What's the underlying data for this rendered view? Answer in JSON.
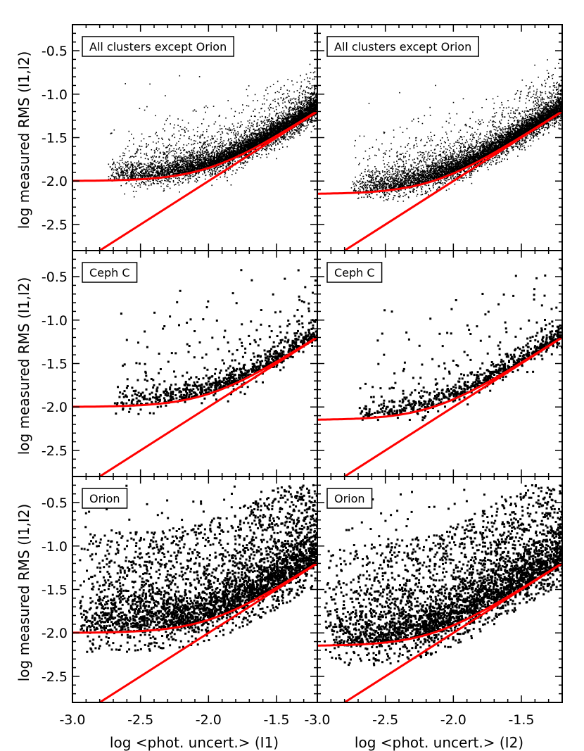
{
  "figure": {
    "ylabel": "log measured RMS (I1,I2)",
    "xlabels": [
      "log <phot. uncert.> (I1)",
      "log <phot. uncert.> (I2)"
    ]
  },
  "chart_data": [
    {
      "type": "scatter",
      "row": 0,
      "col": 0,
      "panel_label": "All clusters except Orion",
      "xlabel": "log <phot. uncert.> (I1)",
      "ylabel": "log measured RMS (I1,I2)",
      "xlim": [
        -3.0,
        -1.2
      ],
      "ylim": [
        -2.8,
        -0.2
      ],
      "xticks": [
        "-3.0",
        "-2.5",
        "-2.0",
        "-1.5"
      ],
      "yticks": [
        "-0.5",
        "-1.0",
        "-1.5",
        "-2.0",
        "-2.5"
      ],
      "points": {
        "count": 7000,
        "density": "very dense",
        "x_range": [
          -2.75,
          -1.2
        ],
        "y_range": [
          -2.2,
          -0.6
        ],
        "marker": "small"
      },
      "fit_curve": {
        "name": "noise floor fit",
        "floor": -2.0,
        "color": "#ff0000"
      },
      "line": {
        "name": "one-to-one",
        "points": [
          [
            -2.8,
            -2.8
          ],
          [
            -1.2,
            -1.2
          ]
        ],
        "color": "#ff0000"
      }
    },
    {
      "type": "scatter",
      "row": 0,
      "col": 1,
      "panel_label": "All clusters except Orion",
      "xlabel": "log <phot. uncert.> (I2)",
      "ylabel": "log measured RMS (I1,I2)",
      "xlim": [
        -3.0,
        -1.2
      ],
      "ylim": [
        -2.8,
        -0.2
      ],
      "xticks": [
        "-3.0",
        "-2.5",
        "-2.0",
        "-1.5"
      ],
      "yticks": [
        "-0.5",
        "-1.0",
        "-1.5",
        "-2.0",
        "-2.5"
      ],
      "points": {
        "count": 7000,
        "density": "very dense",
        "x_range": [
          -2.75,
          -1.2
        ],
        "y_range": [
          -2.25,
          -0.6
        ],
        "marker": "small"
      },
      "fit_curve": {
        "name": "noise floor fit",
        "floor": -2.15,
        "color": "#ff0000"
      },
      "line": {
        "name": "one-to-one",
        "points": [
          [
            -2.8,
            -2.8
          ],
          [
            -1.2,
            -1.2
          ]
        ],
        "color": "#ff0000"
      }
    },
    {
      "type": "scatter",
      "row": 1,
      "col": 0,
      "panel_label": "Ceph C",
      "xlabel": "log <phot. uncert.> (I1)",
      "ylabel": "log measured RMS (I1,I2)",
      "xlim": [
        -3.0,
        -1.2
      ],
      "ylim": [
        -2.8,
        -0.2
      ],
      "xticks": [
        "-3.0",
        "-2.5",
        "-2.0",
        "-1.5"
      ],
      "yticks": [
        "-0.5",
        "-1.0",
        "-1.5",
        "-2.0",
        "-2.5"
      ],
      "points": {
        "count": 900,
        "density": "moderate",
        "x_range": [
          -2.7,
          -1.2
        ],
        "y_range": [
          -2.1,
          -0.4
        ],
        "marker": "large"
      },
      "fit_curve": {
        "name": "noise floor fit",
        "floor": -2.0,
        "color": "#ff0000"
      },
      "line": {
        "name": "one-to-one",
        "points": [
          [
            -2.8,
            -2.8
          ],
          [
            -1.2,
            -1.2
          ]
        ],
        "color": "#ff0000"
      }
    },
    {
      "type": "scatter",
      "row": 1,
      "col": 1,
      "panel_label": "Ceph C",
      "xlabel": "log <phot. uncert.> (I2)",
      "ylabel": "log measured RMS (I1,I2)",
      "xlim": [
        -3.0,
        -1.2
      ],
      "ylim": [
        -2.8,
        -0.2
      ],
      "xticks": [
        "-3.0",
        "-2.5",
        "-2.0",
        "-1.5"
      ],
      "yticks": [
        "-0.5",
        "-1.0",
        "-1.5",
        "-2.0",
        "-2.5"
      ],
      "points": {
        "count": 800,
        "density": "moderate",
        "x_range": [
          -2.7,
          -1.2
        ],
        "y_range": [
          -2.2,
          -0.4
        ],
        "marker": "large"
      },
      "fit_curve": {
        "name": "noise floor fit",
        "floor": -2.15,
        "color": "#ff0000"
      },
      "line": {
        "name": "one-to-one",
        "points": [
          [
            -2.8,
            -2.8
          ],
          [
            -1.2,
            -1.2
          ]
        ],
        "color": "#ff0000"
      }
    },
    {
      "type": "scatter",
      "row": 2,
      "col": 0,
      "panel_label": "Orion",
      "xlabel": "log <phot. uncert.> (I1)",
      "ylabel": "log measured RMS (I1,I2)",
      "xlim": [
        -3.0,
        -1.2
      ],
      "ylim": [
        -2.8,
        -0.2
      ],
      "xticks": [
        "-3.0",
        "-2.5",
        "-2.0",
        "-1.5"
      ],
      "yticks": [
        "-0.5",
        "-1.0",
        "-1.5",
        "-2.0",
        "-2.5"
      ],
      "points": {
        "count": 3500,
        "density": "dense",
        "x_range": [
          -2.95,
          -1.2
        ],
        "y_range": [
          -2.4,
          -0.3
        ],
        "marker": "large"
      },
      "fit_curve": {
        "name": "noise floor fit",
        "floor": -2.0,
        "color": "#ff0000"
      },
      "line": {
        "name": "one-to-one",
        "points": [
          [
            -2.8,
            -2.8
          ],
          [
            -1.2,
            -1.2
          ]
        ],
        "color": "#ff0000"
      }
    },
    {
      "type": "scatter",
      "row": 2,
      "col": 1,
      "panel_label": "Orion",
      "xlabel": "log <phot. uncert.> (I2)",
      "ylabel": "log measured RMS (I1,I2)",
      "xlim": [
        -3.0,
        -1.2
      ],
      "ylim": [
        -2.8,
        -0.2
      ],
      "xticks": [
        "-3.0",
        "-2.5",
        "-2.0",
        "-1.5"
      ],
      "yticks": [
        "-0.5",
        "-1.0",
        "-1.5",
        "-2.0",
        "-2.5"
      ],
      "points": {
        "count": 3500,
        "density": "dense",
        "x_range": [
          -2.95,
          -1.2
        ],
        "y_range": [
          -2.45,
          -0.3
        ],
        "marker": "large"
      },
      "fit_curve": {
        "name": "noise floor fit",
        "floor": -2.15,
        "color": "#ff0000"
      },
      "line": {
        "name": "one-to-one",
        "points": [
          [
            -2.8,
            -2.8
          ],
          [
            -1.2,
            -1.2
          ]
        ],
        "color": "#ff0000"
      }
    }
  ]
}
